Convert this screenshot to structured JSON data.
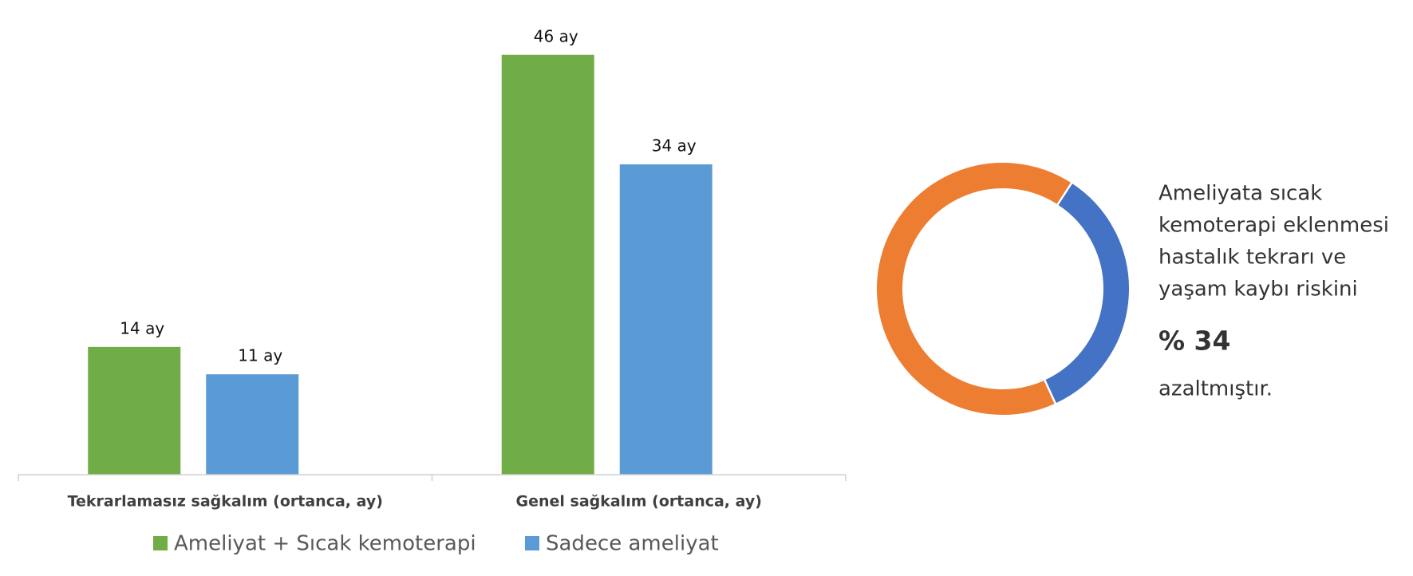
{
  "chart_data": [
    {
      "type": "bar",
      "categories": [
        "Tekrarlamasız sağkalım (ortanca, ay)",
        "Genel sağkalım (ortanca, ay)"
      ],
      "series": [
        {
          "name": "Ameliyat + Sıcak kemoterapi",
          "color": "#70ad47",
          "values": [
            14,
            46
          ],
          "value_labels": [
            "14  ay",
            "46  ay"
          ]
        },
        {
          "name": "Sadece ameliyat",
          "color": "#5b9bd5",
          "values": [
            11,
            34
          ],
          "value_labels": [
            "11  ay",
            "34  ay"
          ]
        }
      ],
      "ylim": [
        0,
        50
      ]
    },
    {
      "type": "pie",
      "values": [
        34,
        66
      ],
      "colors": [
        "#4472c4",
        "#ed7d31"
      ],
      "text_lines": [
        "Ameliyata sıcak",
        "kemoterapi eklenmesi",
        "hastalık tekrarı ve",
        "yaşam kaybı riskini"
      ],
      "highlight": "% 34",
      "closing": "azaltmıştır."
    }
  ]
}
